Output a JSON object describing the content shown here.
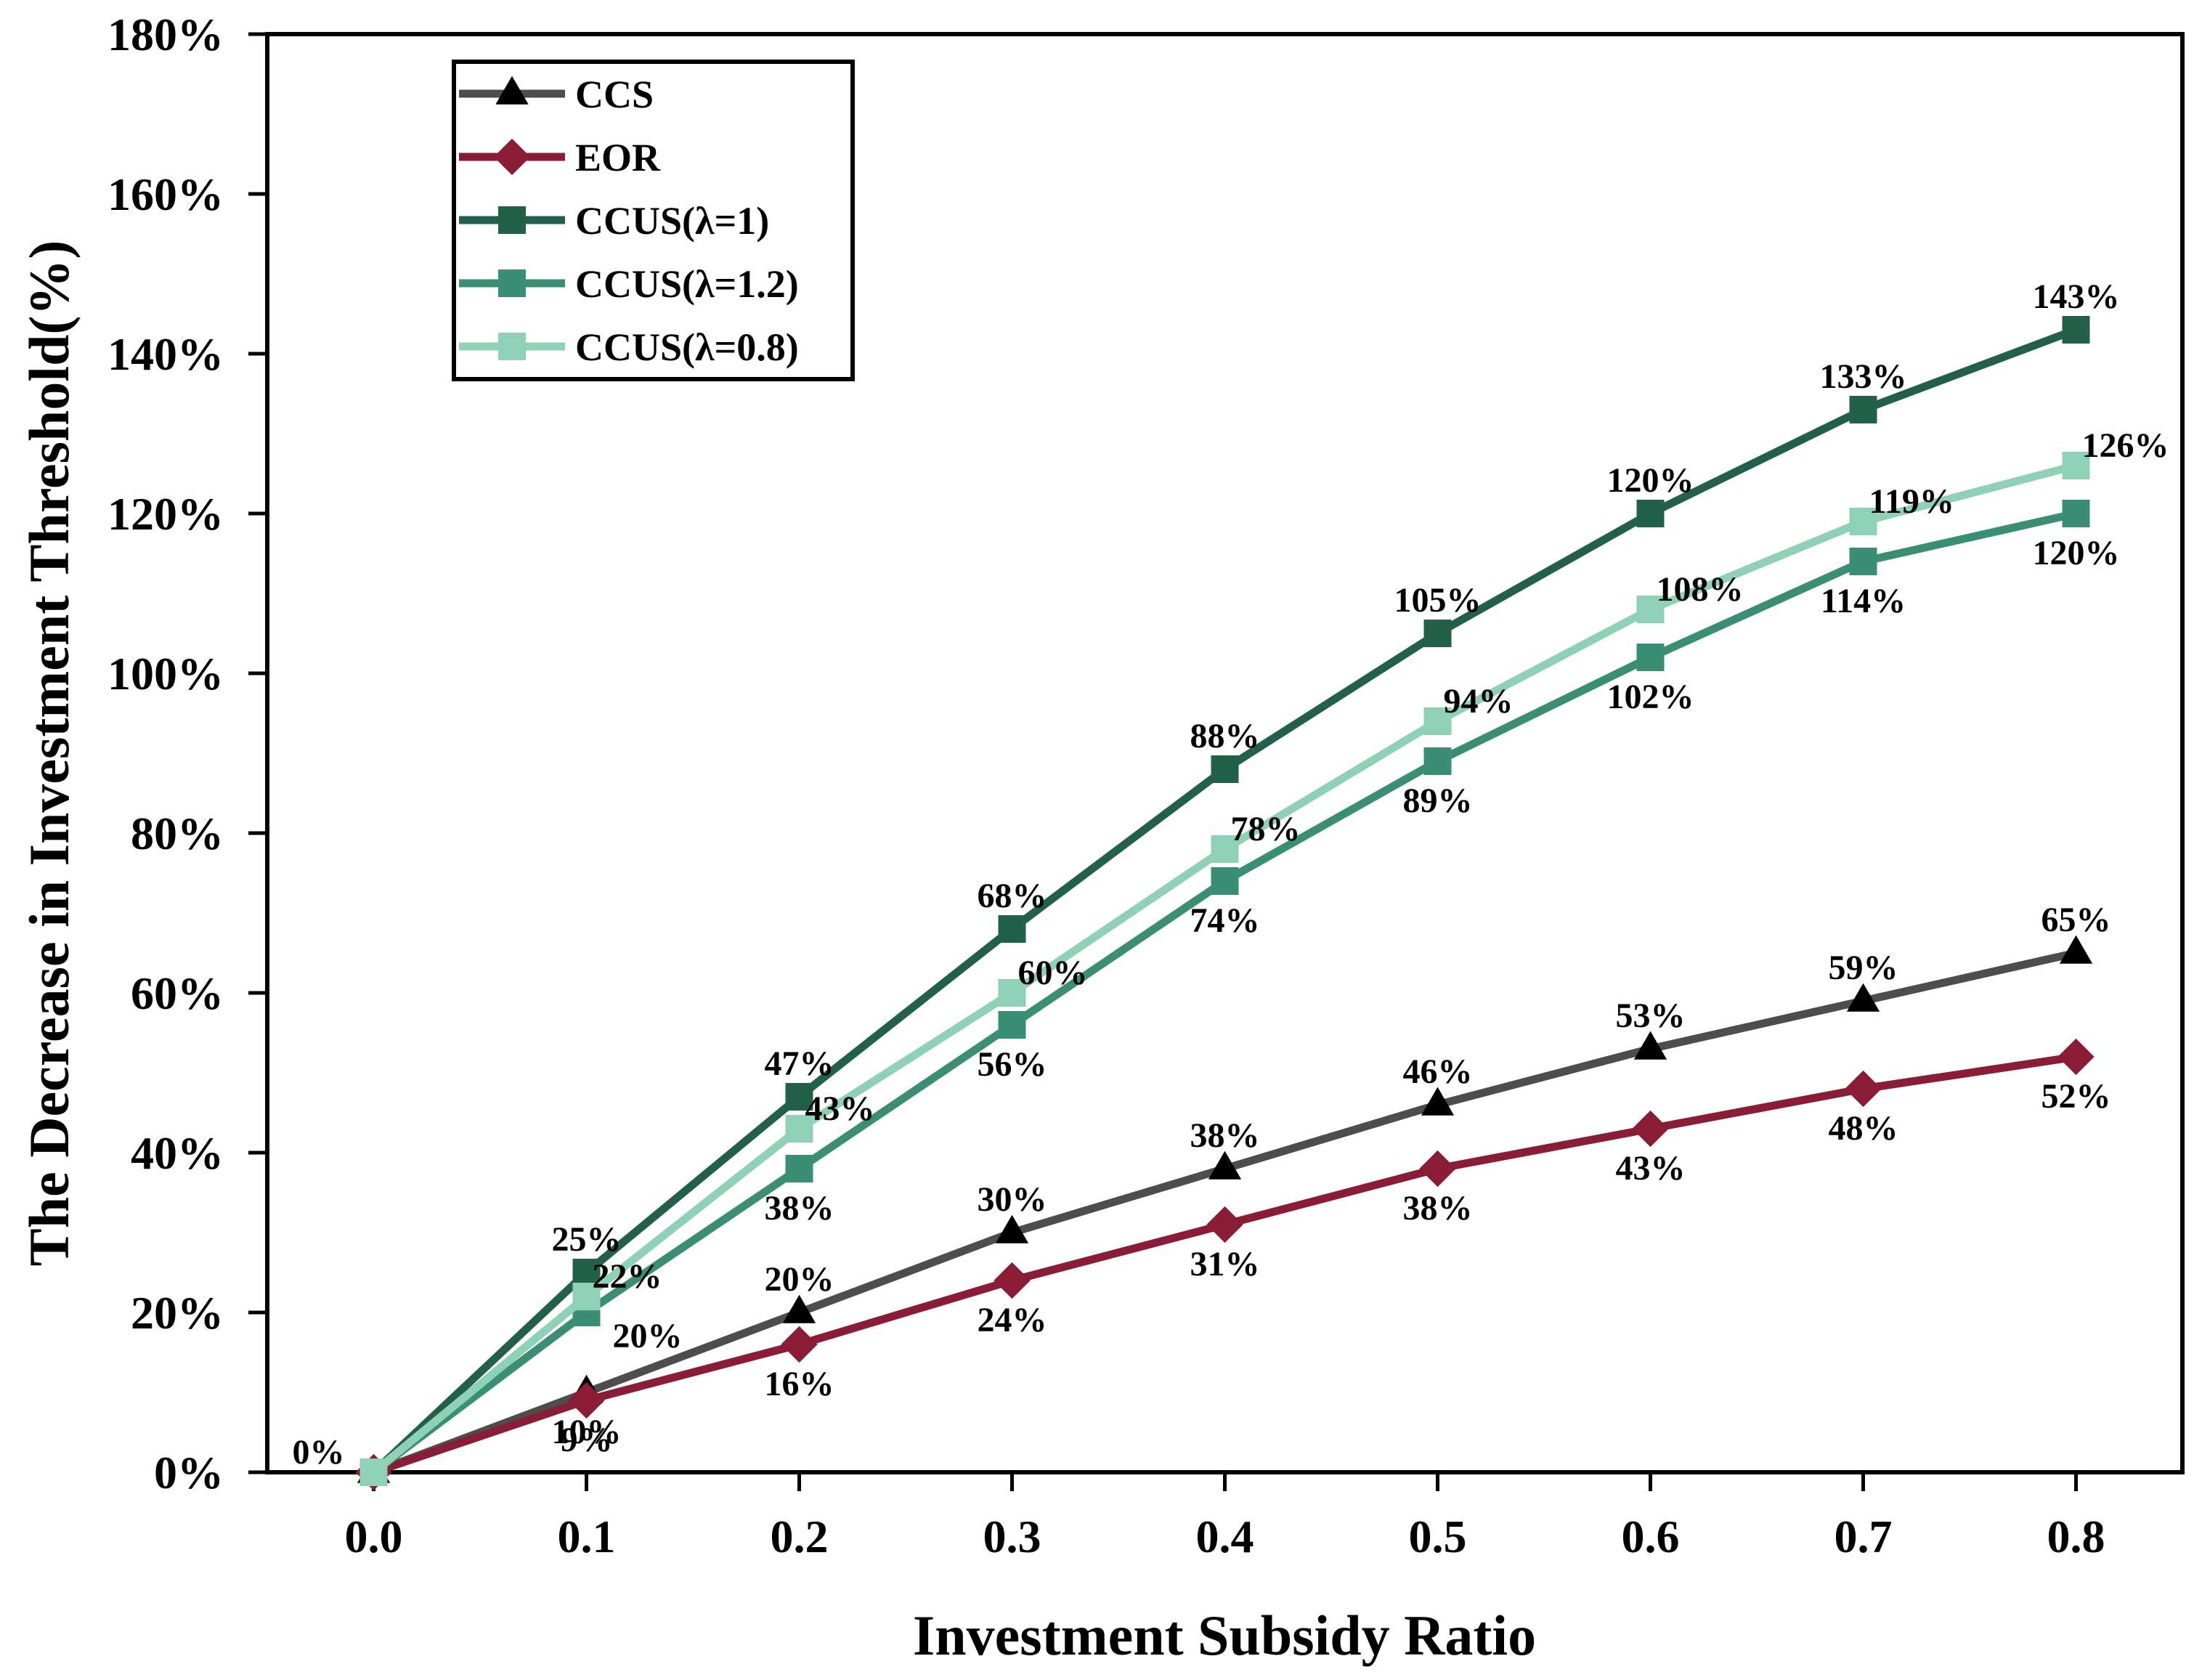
{
  "chart_data": {
    "type": "line",
    "title": "",
    "xlabel": "Investment Subsidy Ratio",
    "ylabel": "The Decrease in Investment Threshold(%)",
    "x": [
      0.0,
      0.1,
      0.2,
      0.3,
      0.4,
      0.5,
      0.6,
      0.7,
      0.8
    ],
    "x_tick_labels": [
      "0.0",
      "0.1",
      "0.2",
      "0.3",
      "0.4",
      "0.5",
      "0.6",
      "0.7",
      "0.8"
    ],
    "xlim": [
      -0.05,
      0.85
    ],
    "ylim": [
      0,
      180
    ],
    "y_ticks": [
      0,
      20,
      40,
      60,
      80,
      100,
      120,
      140,
      160,
      180
    ],
    "y_tick_labels": [
      "0%",
      "20%",
      "40%",
      "60%",
      "80%",
      "100%",
      "120%",
      "140%",
      "160%",
      "180%"
    ],
    "grid": false,
    "legend_position": "top-left",
    "series": [
      {
        "name": "CCS",
        "color": "#4d4d4d",
        "marker_color": "#000000",
        "marker": "triangle",
        "values": [
          0,
          10,
          20,
          30,
          38,
          46,
          53,
          59,
          65
        ],
        "labels": [
          "0%",
          "10%",
          "20%",
          "30%",
          "38%",
          "46%",
          "53%",
          "59%",
          "65%"
        ],
        "label_pos": [
          "left",
          "below",
          "above",
          "above",
          "above",
          "above",
          "above",
          "above",
          "above"
        ]
      },
      {
        "name": "EOR",
        "color": "#8a1c36",
        "marker_color": "#8a1c36",
        "marker": "diamond",
        "values": [
          0,
          9,
          16,
          24,
          31,
          38,
          43,
          48,
          52
        ],
        "labels": [
          "",
          "9%",
          "16%",
          "24%",
          "31%",
          "38%",
          "43%",
          "48%",
          "52%"
        ],
        "label_pos": [
          "none",
          "below",
          "below",
          "below",
          "below",
          "below",
          "below",
          "below",
          "below"
        ]
      },
      {
        "name": "CCUS(λ=1)",
        "color": "#22604a",
        "marker_color": "#22604a",
        "marker": "square",
        "values": [
          0,
          25,
          47,
          68,
          88,
          105,
          120,
          133,
          143
        ],
        "labels": [
          "",
          "25%",
          "47%",
          "68%",
          "88%",
          "105%",
          "120%",
          "133%",
          "143%"
        ],
        "label_pos": [
          "none",
          "above",
          "above",
          "above",
          "above",
          "above",
          "above",
          "above",
          "above"
        ]
      },
      {
        "name": "CCUS(λ=1.2)",
        "color": "#3a8e73",
        "marker_color": "#3a8e73",
        "marker": "square",
        "values": [
          0,
          20,
          38,
          56,
          74,
          89,
          102,
          114,
          120
        ],
        "labels": [
          "",
          "20%",
          "38%",
          "56%",
          "74%",
          "89%",
          "102%",
          "114%",
          "120%"
        ],
        "label_pos": [
          "none",
          "right",
          "below",
          "below",
          "below",
          "below",
          "below",
          "below",
          "below"
        ]
      },
      {
        "name": "CCUS(λ=0.8)",
        "color": "#8fd1b6",
        "marker_color": "#8fd1b6",
        "marker": "square",
        "values": [
          0,
          22,
          43,
          60,
          78,
          94,
          108,
          119,
          126
        ],
        "labels": [
          "",
          "22%",
          "43%",
          "60%",
          "78%",
          "94%",
          "108%",
          "119%",
          "126%"
        ],
        "label_pos": [
          "none",
          "above-right",
          "above-right",
          "above-right",
          "above-right",
          "above-right",
          "above-right",
          "above-right",
          "above-right"
        ]
      }
    ]
  }
}
